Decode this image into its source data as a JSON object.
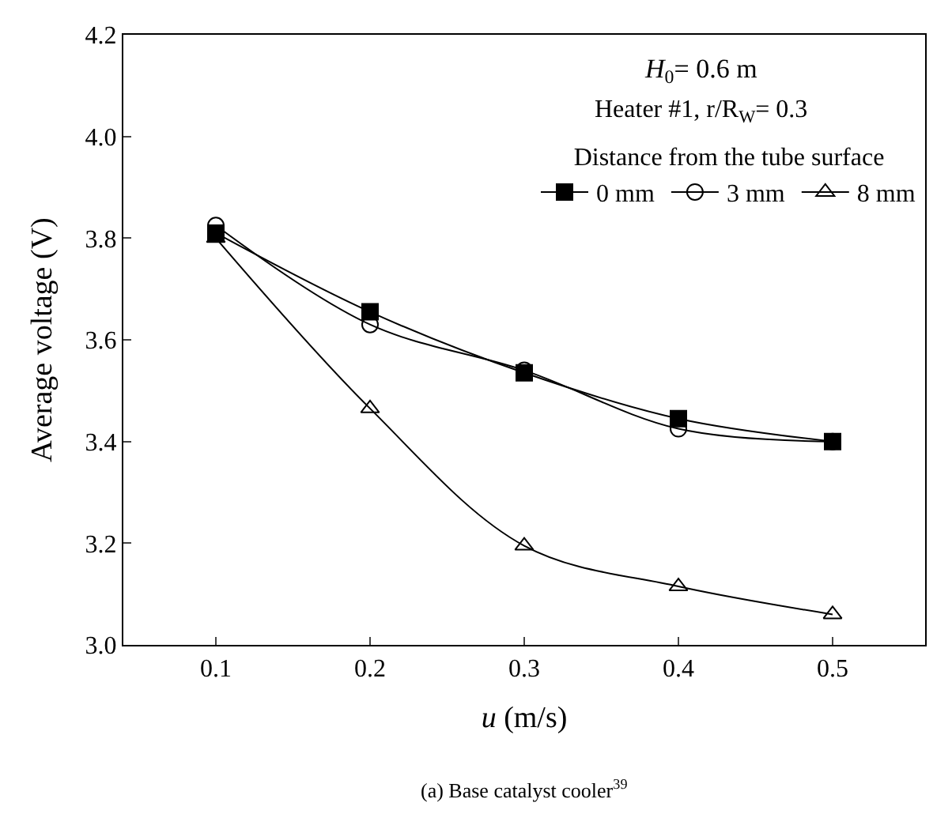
{
  "chart_data": {
    "type": "line",
    "xlabel": "u (m/s)",
    "ylabel": "Average voltage (V)",
    "x": [
      0.1,
      0.2,
      0.3,
      0.4,
      0.5
    ],
    "xlim": [
      0.04,
      0.56
    ],
    "xticks": [
      0.1,
      0.2,
      0.3,
      0.4,
      0.5
    ],
    "ylim": [
      3.0,
      4.2
    ],
    "yticks": [
      {
        "value": 3.0,
        "label": "3.0"
      },
      3.2,
      3.4,
      3.6,
      3.8,
      {
        "value": 4.0,
        "label": "4.0"
      },
      4.2
    ],
    "legend": "top right",
    "legend_title": "Distance from the tube surface",
    "line_style": "solid",
    "series": [
      {
        "name": "0 mm",
        "color": "#000000",
        "marker": "square",
        "values": [
          3.81,
          3.655,
          3.535,
          3.445,
          3.4
        ]
      },
      {
        "name": "3 mm",
        "color": "#000000",
        "marker": "circle-open",
        "values": [
          3.825,
          3.63,
          3.54,
          3.425,
          3.4
        ]
      },
      {
        "name": "8 mm",
        "color": "#000000",
        "marker": "triangle-open",
        "values": [
          3.8,
          3.465,
          3.195,
          3.115,
          3.06
        ]
      }
    ],
    "annotations": [
      "H$_{0}$= 0.6 m",
      "Heater #1, r/R$_{W}$= 0.3",
      "(a) Base catalyst cooler$^{39}$"
    ]
  }
}
